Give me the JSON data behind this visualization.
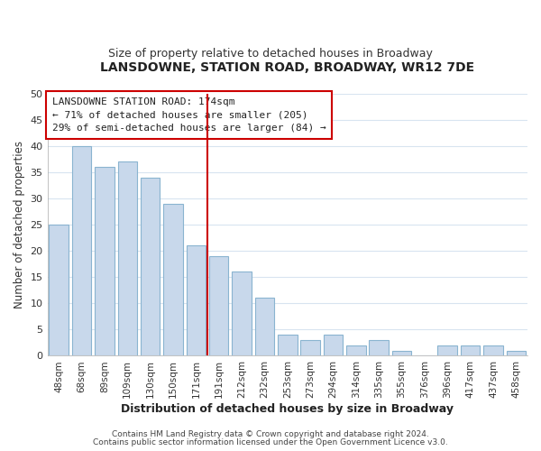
{
  "title": "LANSDOWNE, STATION ROAD, BROADWAY, WR12 7DE",
  "subtitle": "Size of property relative to detached houses in Broadway",
  "xlabel": "Distribution of detached houses by size in Broadway",
  "ylabel": "Number of detached properties",
  "footer1": "Contains HM Land Registry data © Crown copyright and database right 2024.",
  "footer2": "Contains public sector information licensed under the Open Government Licence v3.0.",
  "bar_labels": [
    "48sqm",
    "68sqm",
    "89sqm",
    "109sqm",
    "130sqm",
    "150sqm",
    "171sqm",
    "191sqm",
    "212sqm",
    "232sqm",
    "253sqm",
    "273sqm",
    "294sqm",
    "314sqm",
    "335sqm",
    "355sqm",
    "376sqm",
    "396sqm",
    "417sqm",
    "437sqm",
    "458sqm"
  ],
  "bar_values": [
    25,
    40,
    36,
    37,
    34,
    29,
    21,
    19,
    16,
    11,
    4,
    3,
    4,
    2,
    3,
    1,
    0,
    2,
    2,
    2,
    1
  ],
  "bar_color": "#c8d8eb",
  "bar_edge_color": "#8ab4d0",
  "highlight_index": 6,
  "highlight_line_color": "#cc0000",
  "ylim": [
    0,
    50
  ],
  "yticks": [
    0,
    5,
    10,
    15,
    20,
    25,
    30,
    35,
    40,
    45,
    50
  ],
  "annotation_title": "LANSDOWNE STATION ROAD: 174sqm",
  "annotation_line1": "← 71% of detached houses are smaller (205)",
  "annotation_line2": "29% of semi-detached houses are larger (84) →",
  "annotation_box_color": "#ffffff",
  "annotation_box_edge": "#cc0000",
  "bg_color": "#ffffff",
  "grid_color": "#d8e4f0",
  "title_fontsize": 10,
  "subtitle_fontsize": 9
}
